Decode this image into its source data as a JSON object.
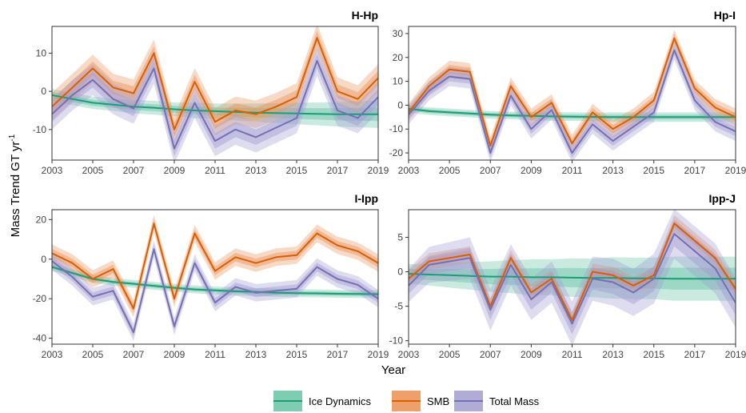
{
  "figure": {
    "y_axis_title": "Mass Trend GT yr",
    "y_axis_title_sup": "-1",
    "x_axis_title": "Year"
  },
  "colors": {
    "ice_dynamics": "#1b9e77",
    "smb": "#d95f02",
    "total_mass": "#7570b3",
    "ice_dynamics_band": "#66c2a5",
    "smb_band": "#e8925a",
    "total_mass_band": "#a19cd0"
  },
  "legend": {
    "items": [
      {
        "key": "ice_dynamics",
        "label": "Ice Dynamics"
      },
      {
        "key": "smb",
        "label": "SMB"
      },
      {
        "key": "total_mass",
        "label": "Total Mass"
      }
    ]
  },
  "chart_data": [
    {
      "type": "line",
      "title": "H-Hp",
      "x": [
        2003,
        2004,
        2005,
        2006,
        2007,
        2008,
        2009,
        2010,
        2011,
        2012,
        2013,
        2014,
        2015,
        2016,
        2017,
        2018,
        2019
      ],
      "xticks": [
        2003,
        2005,
        2007,
        2009,
        2011,
        2013,
        2015,
        2017,
        2019
      ],
      "yticks": [
        -10,
        0,
        10
      ],
      "ylim": [
        -18,
        17
      ],
      "series": [
        {
          "name": "Ice Dynamics",
          "key": "ice_dynamics",
          "values": [
            -1,
            -2,
            -3,
            -3.5,
            -4,
            -4.3,
            -4.7,
            -5,
            -5.2,
            -5.4,
            -5.6,
            -5.7,
            -5.8,
            -5.9,
            -6,
            -6,
            -6
          ],
          "band": [
            0.8,
            0.8,
            0.8,
            0.8,
            0.9,
            0.9,
            0.9,
            1,
            1,
            1.1,
            1.2,
            1.3,
            1.4,
            1.5,
            1.6,
            1.7,
            1.8
          ]
        },
        {
          "name": "SMB",
          "key": "smb",
          "values": [
            -4,
            1,
            6,
            1,
            -0.5,
            10,
            -10,
            2.5,
            -8,
            -5,
            -6,
            -4,
            -1.5,
            14,
            0,
            -2,
            3.5
          ],
          "band": [
            1.8,
            1.8,
            1.8,
            1.8,
            1.8,
            1.8,
            1.8,
            1.8,
            1.8,
            1.8,
            1.8,
            1.8,
            1.8,
            1.8,
            1.8,
            1.8,
            1.8
          ]
        },
        {
          "name": "Total Mass",
          "key": "total_mass",
          "values": [
            -6,
            -1,
            3,
            -2,
            -4.5,
            6,
            -15,
            -3,
            -13,
            -10,
            -12,
            -9.5,
            -7,
            8,
            -5,
            -7,
            -1.5
          ],
          "band": [
            2,
            2,
            2,
            2,
            2,
            2,
            2,
            2,
            2,
            2,
            2,
            2,
            2,
            2,
            2,
            2,
            2
          ]
        }
      ]
    },
    {
      "type": "line",
      "title": "Hp-I",
      "x": [
        2003,
        2004,
        2005,
        2006,
        2007,
        2008,
        2009,
        2010,
        2011,
        2012,
        2013,
        2014,
        2015,
        2016,
        2017,
        2018,
        2019
      ],
      "xticks": [
        2003,
        2005,
        2007,
        2009,
        2011,
        2013,
        2015,
        2017,
        2019
      ],
      "yticks": [
        -20,
        -10,
        0,
        10,
        20,
        30
      ],
      "ylim": [
        -23,
        33
      ],
      "series": [
        {
          "name": "Ice Dynamics",
          "key": "ice_dynamics",
          "values": [
            -1.5,
            -2.5,
            -3,
            -3.5,
            -4,
            -4.3,
            -4.5,
            -4.7,
            -4.8,
            -4.9,
            -5,
            -5,
            -5,
            -5,
            -5,
            -5,
            -5
          ],
          "band": [
            0.8,
            0.8,
            0.8,
            0.8,
            0.8,
            0.8,
            0.9,
            0.9,
            0.9,
            0.9,
            1,
            1,
            1,
            1,
            1,
            1,
            1
          ]
        },
        {
          "name": "SMB",
          "key": "smb",
          "values": [
            -3,
            8,
            15,
            14,
            -17,
            8,
            -5,
            1,
            -16,
            -3,
            -10,
            -5,
            2,
            28,
            7,
            -1,
            -5
          ],
          "band": [
            1.8,
            1.8,
            1.8,
            1.8,
            1.8,
            1.8,
            1.8,
            1.8,
            1.8,
            1.8,
            1.8,
            1.8,
            1.8,
            1.8,
            1.8,
            1.8,
            1.8
          ]
        },
        {
          "name": "Total Mass",
          "key": "total_mass",
          "values": [
            -4,
            6,
            12,
            11,
            -20,
            4,
            -10,
            -2,
            -20,
            -8,
            -15,
            -9,
            -3,
            23,
            2,
            -7,
            -11
          ],
          "band": [
            2,
            2,
            2,
            2,
            2,
            2,
            2,
            2,
            2,
            2,
            2,
            2,
            2,
            2,
            2,
            2,
            2
          ]
        }
      ]
    },
    {
      "type": "line",
      "title": "I-Ipp",
      "x": [
        2003,
        2004,
        2005,
        2006,
        2007,
        2008,
        2009,
        2010,
        2011,
        2012,
        2013,
        2014,
        2015,
        2016,
        2017,
        2018,
        2019
      ],
      "xticks": [
        2003,
        2005,
        2007,
        2009,
        2011,
        2013,
        2015,
        2017,
        2019
      ],
      "yticks": [
        -40,
        -20,
        0,
        20
      ],
      "ylim": [
        -43,
        25
      ],
      "series": [
        {
          "name": "Ice Dynamics",
          "key": "ice_dynamics",
          "values": [
            -4,
            -7,
            -10,
            -11.5,
            -12.5,
            -13.5,
            -14.5,
            -15.3,
            -15.8,
            -16.3,
            -16.6,
            -17,
            -17.2,
            -17.3,
            -17.5,
            -17.6,
            -17.7
          ],
          "band": [
            1,
            1,
            1,
            1,
            1,
            1,
            1,
            1,
            1,
            1,
            1,
            1,
            1,
            1,
            1,
            1,
            1
          ]
        },
        {
          "name": "SMB",
          "key": "smb",
          "values": [
            3,
            -2,
            -10,
            -5,
            -25,
            18,
            -20,
            13,
            -6,
            1,
            -2,
            1,
            2,
            13,
            7,
            4,
            -2
          ],
          "band": [
            2.2,
            2.2,
            2.2,
            2.2,
            2.2,
            2.2,
            2.2,
            2.2,
            2.2,
            2.2,
            2.2,
            2.2,
            2.2,
            2.2,
            2.2,
            2.2,
            2.2
          ]
        },
        {
          "name": "Total Mass",
          "key": "total_mass",
          "values": [
            -1,
            -9,
            -19,
            -16,
            -37,
            5,
            -34,
            -2,
            -22,
            -14,
            -17,
            -16,
            -15,
            -4,
            -10,
            -13,
            -20
          ],
          "band": [
            2.2,
            2.2,
            2.2,
            2.2,
            2.2,
            2.2,
            2.2,
            2.2,
            2.2,
            2.2,
            2.2,
            2.2,
            2.2,
            2.2,
            2.2,
            2.2,
            2.2
          ]
        }
      ]
    },
    {
      "type": "line",
      "title": "Ipp-J",
      "x": [
        2003,
        2004,
        2005,
        2006,
        2007,
        2008,
        2009,
        2010,
        2011,
        2012,
        2013,
        2014,
        2015,
        2016,
        2017,
        2018,
        2019
      ],
      "xticks": [
        2003,
        2005,
        2007,
        2009,
        2011,
        2013,
        2015,
        2017,
        2019
      ],
      "yticks": [
        -10,
        -5,
        0,
        5
      ],
      "ylim": [
        -10.5,
        9
      ],
      "series": [
        {
          "name": "Ice Dynamics",
          "key": "ice_dynamics",
          "values": [
            -0.3,
            -0.4,
            -0.5,
            -0.6,
            -0.7,
            -0.7,
            -0.8,
            -0.8,
            -0.85,
            -0.9,
            -0.9,
            -0.95,
            -0.95,
            -1,
            -1,
            -1,
            -1
          ],
          "band": [
            0.7,
            0.8,
            0.9,
            1,
            1.1,
            1.2,
            1.3,
            1.3,
            1.4,
            1.4,
            1.5,
            1.5,
            1.5,
            1.6,
            1.6,
            1.6,
            1.6
          ]
        },
        {
          "name": "SMB",
          "key": "smb",
          "values": [
            -1,
            1.5,
            2,
            2.5,
            -5,
            2,
            -3,
            -1,
            -7,
            0,
            -0.5,
            -2,
            -0.5,
            7,
            4.5,
            2,
            -2.5
          ],
          "band": [
            0.6,
            0.6,
            0.6,
            0.6,
            0.6,
            0.6,
            0.6,
            0.6,
            0.6,
            0.6,
            0.6,
            0.6,
            0.6,
            0.6,
            0.6,
            0.6,
            0.6
          ]
        },
        {
          "name": "Total Mass",
          "key": "total_mass",
          "values": [
            -2,
            1,
            1.5,
            2,
            -5.5,
            1,
            -4,
            -1.5,
            -7.5,
            -1,
            -1.5,
            -3,
            -1,
            5.5,
            3,
            0.5,
            -4.5
          ],
          "band": [
            1.2,
            1.3,
            1.4,
            1.5,
            1.5,
            1.5,
            1.5,
            1.5,
            1.6,
            1.6,
            1.7,
            1.7,
            1.8,
            1.8,
            1.8,
            1.8,
            1.8
          ]
        }
      ]
    }
  ]
}
